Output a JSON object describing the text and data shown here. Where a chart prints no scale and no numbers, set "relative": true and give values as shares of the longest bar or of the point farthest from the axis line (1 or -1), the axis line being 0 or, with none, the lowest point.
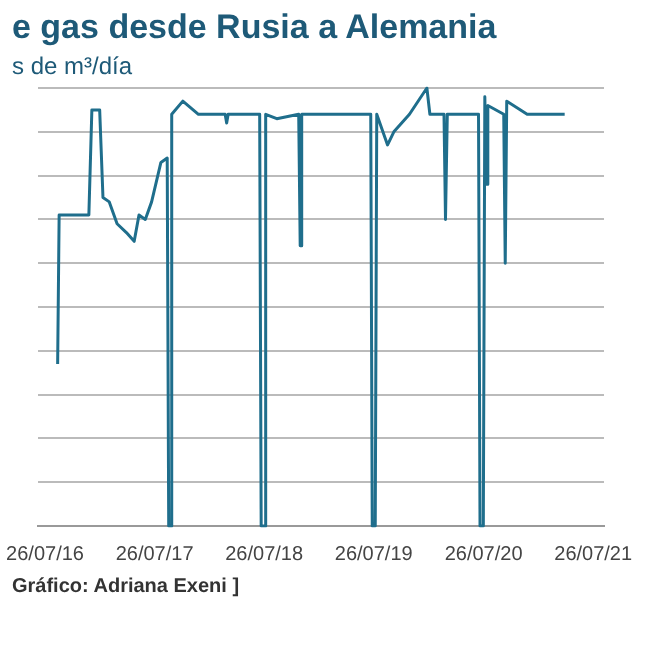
{
  "chart_data": {
    "type": "line",
    "title": "e gas desde Rusia a Alemania",
    "subtitle": "s de m³/día",
    "annotations": [
      "Gráfico: Adriana Exeni ]"
    ],
    "relative": true,
    "grid": "y",
    "legend": false,
    "marker": "none",
    "xlim": [
      "2016-07-01",
      "2021-08-31"
    ],
    "xticks": [
      {
        "value": "2016-07-26",
        "label": "26/07/16"
      },
      {
        "value": "2017-07-26",
        "label": "26/07/17"
      },
      {
        "value": "2018-07-26",
        "label": "26/07/18"
      },
      {
        "value": "2019-07-26",
        "label": "26/07/19"
      },
      {
        "value": "2020-07-26",
        "label": "26/07/20"
      },
      {
        "value": "2021-07-26",
        "label": "26/07/21"
      }
    ],
    "x": [
      "2016-09-06",
      "2016-09-11",
      "2016-10-28",
      "2016-12-19",
      "2016-12-29",
      "2017-01-24",
      "2017-02-04",
      "2017-02-25",
      "2017-03-23",
      "2017-04-23",
      "2017-05-19",
      "2017-06-04",
      "2017-06-25",
      "2017-07-16",
      "2017-08-16",
      "2017-09-06",
      "2017-09-11",
      "2017-09-16",
      "2017-09-21",
      "2017-10-28",
      "2017-12-19",
      "2018-03-18",
      "2018-03-23",
      "2018-03-28",
      "2018-07-11",
      "2018-07-16",
      "2018-07-26",
      "2018-07-31",
      "2018-09-06",
      "2018-11-18",
      "2018-11-23",
      "2018-11-28",
      "2019-04-03",
      "2019-07-16",
      "2019-07-21",
      "2019-07-31",
      "2019-08-05",
      "2019-09-10",
      "2019-10-01",
      "2019-11-22",
      "2020-01-19",
      "2020-01-29",
      "2020-03-16",
      "2020-03-21",
      "2020-03-27",
      "2020-07-09",
      "2020-07-14",
      "2020-07-25",
      "2020-07-30",
      "2020-08-04",
      "2020-08-09",
      "2020-10-01",
      "2020-10-06",
      "2020-10-11",
      "2020-12-18",
      "2021-04-22"
    ],
    "series": [
      {
        "color": "#1f6e8c",
        "values": [
          0.37,
          0.71,
          0.71,
          0.71,
          0.95,
          0.95,
          0.75,
          0.74,
          0.69,
          0.67,
          0.65,
          0.71,
          0.7,
          0.74,
          0.83,
          0.84,
          0,
          0,
          0.94,
          0.97,
          0.94,
          0.94,
          0.92,
          0.94,
          0.94,
          0,
          0,
          0.94,
          0.93,
          0.94,
          0.64,
          0.94,
          0.94,
          0.94,
          0,
          0,
          0.94,
          0.87,
          0.9,
          0.94,
          1,
          0.94,
          0.94,
          0.7,
          0.94,
          0.94,
          0,
          0,
          0.98,
          0.78,
          0.96,
          0.94,
          0.6,
          0.97,
          0.94,
          0.94
        ]
      }
    ]
  }
}
